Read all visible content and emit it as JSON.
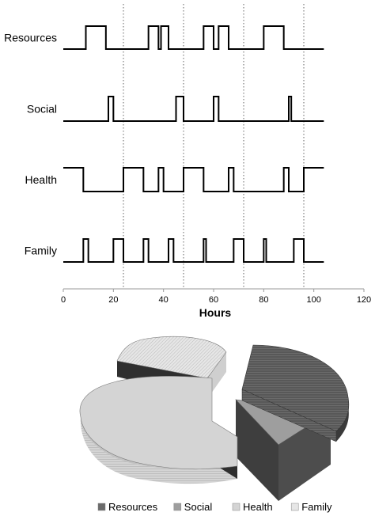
{
  "chart_data": [
    {
      "type": "line",
      "subtype": "step-timeline",
      "title": "",
      "xlabel": "Hours",
      "ylabel": "",
      "xlim": [
        0,
        120
      ],
      "x_ticks": [
        0,
        20,
        40,
        60,
        80,
        100,
        120
      ],
      "vertical_dotted_lines_at": [
        24,
        48,
        72,
        96
      ],
      "series": [
        {
          "name": "Resources",
          "x_start": 0,
          "x_end": 104,
          "high_intervals": [
            [
              9,
              17
            ],
            [
              34,
              38
            ],
            [
              39,
              42
            ],
            [
              56,
              60
            ],
            [
              62,
              66
            ],
            [
              80,
              88
            ]
          ]
        },
        {
          "name": "Social",
          "x_start": 0,
          "x_end": 104,
          "high_intervals": [
            [
              18,
              20
            ],
            [
              45,
              48
            ],
            [
              60,
              62
            ],
            [
              90,
              91
            ]
          ]
        },
        {
          "name": "Health",
          "x_start": 0,
          "x_end": 104,
          "high_intervals": [
            [
              0,
              8
            ],
            [
              24,
              32
            ],
            [
              38,
              40
            ],
            [
              48,
              56
            ],
            [
              66,
              68
            ],
            [
              88,
              90
            ],
            [
              96,
              104
            ]
          ]
        },
        {
          "name": "Family",
          "x_start": 0,
          "x_end": 104,
          "high_intervals": [
            [
              8,
              10
            ],
            [
              20,
              24
            ],
            [
              32,
              34
            ],
            [
              42,
              44
            ],
            [
              56,
              57
            ],
            [
              68,
              72
            ],
            [
              80,
              81
            ],
            [
              92,
              96
            ]
          ]
        }
      ]
    },
    {
      "type": "pie",
      "style": "3d-exploded",
      "title": "",
      "slices": [
        {
          "name": "Resources",
          "value": 0.25,
          "color": "#6b6b6b"
        },
        {
          "name": "Social",
          "value": 0.09,
          "color": "#9e9e9e"
        },
        {
          "name": "Health",
          "value": 0.38,
          "color": "#d4d4d4"
        },
        {
          "name": "Family",
          "value": 0.28,
          "color": "#e6e6e6"
        }
      ],
      "legend": {
        "position": "bottom"
      }
    }
  ]
}
